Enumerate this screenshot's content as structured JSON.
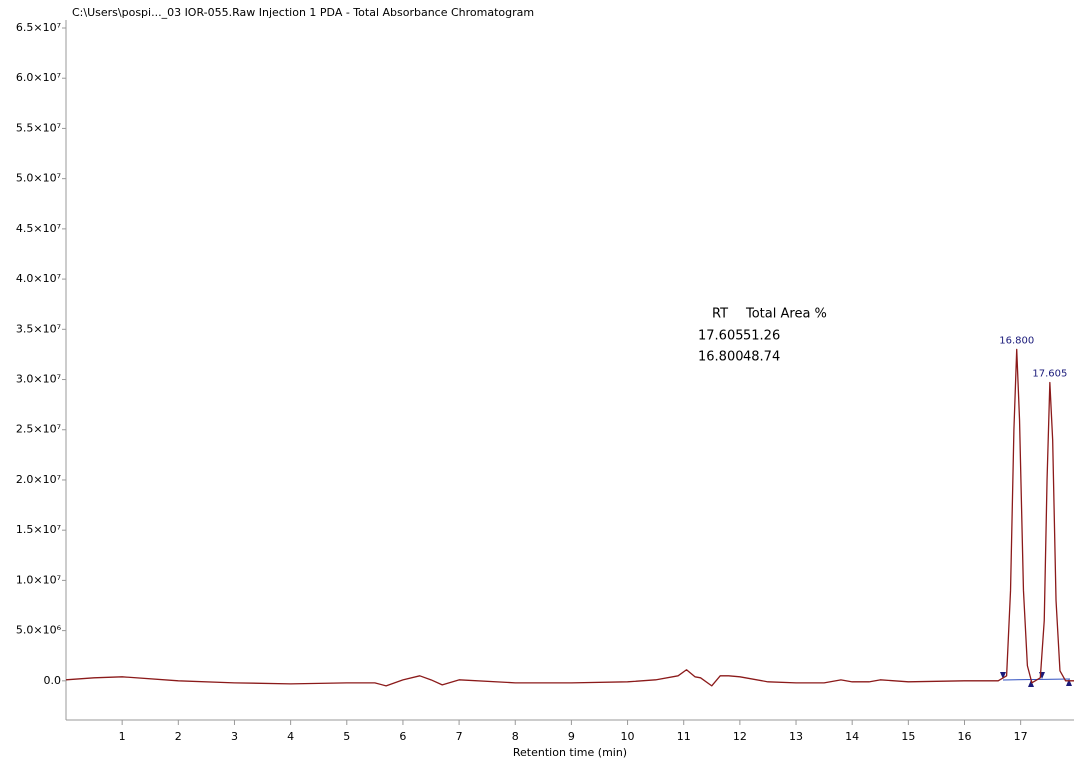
{
  "chart_data": {
    "type": "line",
    "subtitle": "C:\\Users\\pospi..._03 IOR-055.Raw Injection 1 PDA - Total Absorbance Chromatogram",
    "xlabel": "Retention time (min)",
    "x": [
      0,
      0.5,
      1,
      2,
      3,
      4,
      5,
      5.5,
      5.7,
      6,
      6.3,
      6.5,
      6.7,
      7,
      8,
      9,
      10,
      10.5,
      10.9,
      11.05,
      11.2,
      11.3,
      11.5,
      11.65,
      11.8,
      12,
      12.5,
      13,
      13.5,
      13.8,
      14,
      14.3,
      14.5,
      15,
      16,
      16.6,
      16.75,
      16.82,
      16.88,
      16.93,
      16.98,
      17.05,
      17.12,
      17.2,
      17.35,
      17.42,
      17.47,
      17.52,
      17.57,
      17.63,
      17.7,
      17.8,
      17.95
    ],
    "series": [
      {
        "color": "#8b1a1a",
        "values": [
          100000,
          300000,
          400000,
          0,
          -200000,
          -300000,
          -200000,
          -200000,
          -500000,
          100000,
          500000,
          100000,
          -400000,
          100000,
          -200000,
          -200000,
          -100000,
          100000,
          500000,
          1100000,
          400000,
          300000,
          -500000,
          500000,
          500000,
          400000,
          -100000,
          -200000,
          -200000,
          100000,
          -100000,
          -100000,
          100000,
          -100000,
          0,
          0,
          500000,
          9000000,
          25000000,
          33000000,
          26000000,
          9000000,
          1500000,
          -200000,
          300000,
          6000000,
          20000000,
          29700000,
          24000000,
          8000000,
          1000000,
          0,
          0
        ]
      }
    ],
    "peaks": [
      {
        "label": "16.800",
        "x": 16.93,
        "y": 33000000
      },
      {
        "label": "17.605",
        "x": 17.52,
        "y": 29700000
      }
    ],
    "table": {
      "header": [
        "RT",
        "Total Area %"
      ],
      "rows": [
        [
          "17.605",
          "51.26"
        ],
        [
          "16.800",
          "48.74"
        ]
      ]
    },
    "xlim": [
      0,
      17.95
    ],
    "ylim": [
      -3900000,
      65000000
    ],
    "xticks": [
      1,
      2,
      3,
      4,
      5,
      6,
      7,
      8,
      9,
      10,
      11,
      12,
      13,
      14,
      15,
      16,
      17
    ],
    "yticks": [
      {
        "value": 0,
        "label": "0.0"
      },
      {
        "value": 5000000,
        "label": "5.0×10⁶"
      },
      {
        "value": 10000000,
        "label": "1.0×10⁷"
      },
      {
        "value": 15000000,
        "label": "1.5×10⁷"
      },
      {
        "value": 20000000,
        "label": "2.0×10⁷"
      },
      {
        "value": 25000000,
        "label": "2.5×10⁷"
      },
      {
        "value": 30000000,
        "label": "3.0×10⁷"
      },
      {
        "value": 35000000,
        "label": "3.5×10⁷"
      },
      {
        "value": 40000000,
        "label": "4.0×10⁷"
      },
      {
        "value": 45000000,
        "label": "4.5×10⁷"
      },
      {
        "value": 50000000,
        "label": "5.0×10⁷"
      },
      {
        "value": 55000000,
        "label": "5.5×10⁷"
      },
      {
        "value": 60000000,
        "label": "6.0×10⁷"
      },
      {
        "value": 65000000,
        "label": "6.5×10⁷"
      }
    ]
  }
}
